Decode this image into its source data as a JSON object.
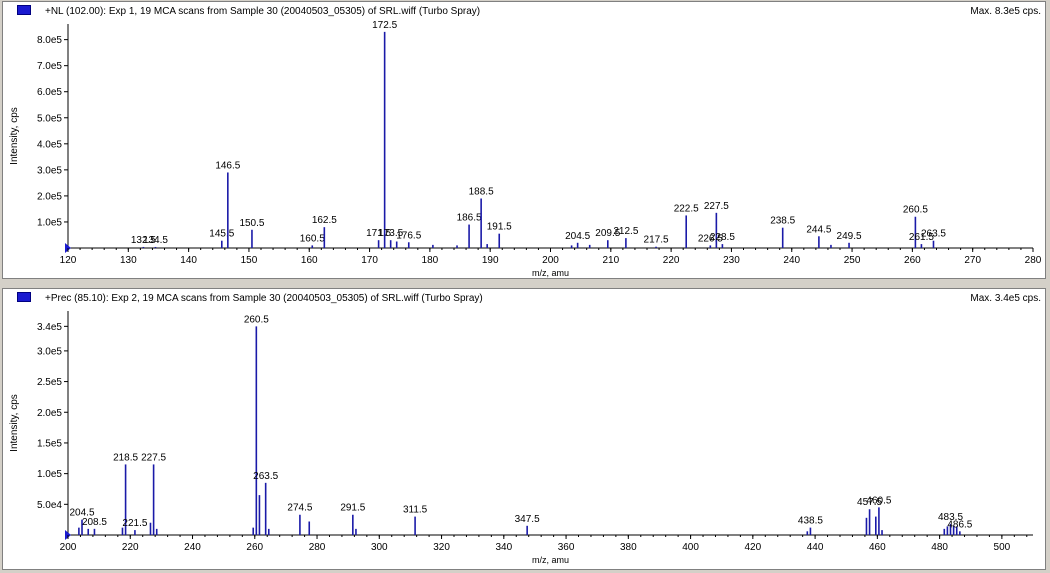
{
  "chart_data": [
    {
      "type": "bar",
      "title": "+NL (102.00): Exp 1, 19 MCA scans from Sample 30 (20040503_05305) of SRL.wiff (Turbo Spray)",
      "max_label": "Max. 8.3e5 cps.",
      "xlabel": "m/z, amu",
      "ylabel": "Intensity, cps",
      "xlim": [
        120,
        280
      ],
      "ylim": [
        0,
        860000.0
      ],
      "x_ticks": [
        120,
        130,
        140,
        150,
        160,
        170,
        180,
        190,
        200,
        210,
        220,
        230,
        240,
        250,
        260,
        270,
        280
      ],
      "y_ticks": [
        {
          "value": 100000,
          "label": "1.0e5"
        },
        {
          "value": 200000,
          "label": "2.0e5"
        },
        {
          "value": 300000,
          "label": "3.0e5"
        },
        {
          "value": 400000,
          "label": "4.0e5"
        },
        {
          "value": 500000,
          "label": "5.0e5"
        },
        {
          "value": 600000,
          "label": "6.0e5"
        },
        {
          "value": 700000,
          "label": "7.0e5"
        },
        {
          "value": 800000,
          "label": "8.0e5"
        }
      ],
      "peaks": [
        {
          "x": 132.5,
          "y": 4000,
          "label": "132.5"
        },
        {
          "x": 134.5,
          "y": 4000,
          "label": "134.5"
        },
        {
          "x": 145.5,
          "y": 28000,
          "label": "145.5"
        },
        {
          "x": 146.5,
          "y": 290000,
          "label": "146.5"
        },
        {
          "x": 150.5,
          "y": 70000,
          "label": "150.5"
        },
        {
          "x": 160.5,
          "y": 10000,
          "label": "160.5"
        },
        {
          "x": 162.5,
          "y": 80000,
          "label": "162.5"
        },
        {
          "x": 171.5,
          "y": 30000,
          "label": "171.5"
        },
        {
          "x": 172.5,
          "y": 830000,
          "label": "172.5"
        },
        {
          "x": 173.5,
          "y": 30000,
          "label": "173.5"
        },
        {
          "x": 174.5,
          "y": 25000,
          "label": ""
        },
        {
          "x": 176.5,
          "y": 22000,
          "label": "176.5"
        },
        {
          "x": 180.5,
          "y": 12000,
          "label": ""
        },
        {
          "x": 184.5,
          "y": 10000,
          "label": ""
        },
        {
          "x": 186.5,
          "y": 90000,
          "label": "186.5"
        },
        {
          "x": 188.5,
          "y": 190000,
          "label": "188.5"
        },
        {
          "x": 189.5,
          "y": 15000,
          "label": ""
        },
        {
          "x": 191.5,
          "y": 55000,
          "label": "191.5"
        },
        {
          "x": 203.5,
          "y": 10000,
          "label": ""
        },
        {
          "x": 204.5,
          "y": 20000,
          "label": "204.5"
        },
        {
          "x": 206.5,
          "y": 12000,
          "label": ""
        },
        {
          "x": 209.5,
          "y": 30000,
          "label": "209.5"
        },
        {
          "x": 212.5,
          "y": 38000,
          "label": "212.5"
        },
        {
          "x": 217.5,
          "y": 5000,
          "label": "217.5"
        },
        {
          "x": 222.5,
          "y": 125000,
          "label": "222.5"
        },
        {
          "x": 226.5,
          "y": 10000,
          "label": "226.5"
        },
        {
          "x": 227.5,
          "y": 135000,
          "label": "227.5"
        },
        {
          "x": 228.5,
          "y": 15000,
          "label": "228.5"
        },
        {
          "x": 238.5,
          "y": 78000,
          "label": "238.5"
        },
        {
          "x": 244.5,
          "y": 45000,
          "label": "244.5"
        },
        {
          "x": 246.5,
          "y": 12000,
          "label": ""
        },
        {
          "x": 249.5,
          "y": 20000,
          "label": "249.5"
        },
        {
          "x": 260.5,
          "y": 120000,
          "label": "260.5"
        },
        {
          "x": 261.5,
          "y": 15000,
          "label": "261.5"
        },
        {
          "x": 263.5,
          "y": 28000,
          "label": "263.5"
        }
      ]
    },
    {
      "type": "bar",
      "title": "+Prec (85.10): Exp 2, 19 MCA scans from Sample 30 (20040503_05305) of SRL.wiff (Turbo Spray)",
      "max_label": "Max. 3.4e5 cps.",
      "xlabel": "m/z, amu",
      "ylabel": "Intensity, cps",
      "xlim": [
        200,
        510
      ],
      "ylim": [
        0,
        365000.0
      ],
      "x_ticks": [
        200,
        220,
        240,
        260,
        280,
        300,
        320,
        340,
        360,
        380,
        400,
        420,
        440,
        460,
        480,
        500
      ],
      "y_ticks": [
        {
          "value": 50000,
          "label": "5.0e4"
        },
        {
          "value": 100000,
          "label": "1.0e5"
        },
        {
          "value": 150000,
          "label": "1.5e5"
        },
        {
          "value": 200000,
          "label": "2.0e5"
        },
        {
          "value": 250000,
          "label": "2.5e5"
        },
        {
          "value": 300000,
          "label": "3.0e5"
        },
        {
          "value": 340000,
          "label": "3.4e5"
        }
      ],
      "peaks": [
        {
          "x": 204.5,
          "y": 25000,
          "label": "204.5"
        },
        {
          "x": 203.5,
          "y": 12000,
          "label": ""
        },
        {
          "x": 206.5,
          "y": 10000,
          "label": ""
        },
        {
          "x": 208.5,
          "y": 10000,
          "label": "208.5"
        },
        {
          "x": 218.5,
          "y": 115000,
          "label": "218.5"
        },
        {
          "x": 217.5,
          "y": 12000,
          "label": ""
        },
        {
          "x": 221.5,
          "y": 8000,
          "label": "221.5"
        },
        {
          "x": 226.5,
          "y": 20000,
          "label": ""
        },
        {
          "x": 227.5,
          "y": 115000,
          "label": "227.5"
        },
        {
          "x": 228.5,
          "y": 10000,
          "label": ""
        },
        {
          "x": 259.5,
          "y": 12000,
          "label": ""
        },
        {
          "x": 260.5,
          "y": 340000,
          "label": "260.5"
        },
        {
          "x": 261.5,
          "y": 65000,
          "label": ""
        },
        {
          "x": 263.5,
          "y": 85000,
          "label": "263.5"
        },
        {
          "x": 264.5,
          "y": 10000,
          "label": ""
        },
        {
          "x": 274.5,
          "y": 33000,
          "label": "274.5"
        },
        {
          "x": 277.5,
          "y": 22000,
          "label": ""
        },
        {
          "x": 291.5,
          "y": 33000,
          "label": "291.5"
        },
        {
          "x": 292.5,
          "y": 10000,
          "label": ""
        },
        {
          "x": 311.5,
          "y": 30000,
          "label": "311.5"
        },
        {
          "x": 347.5,
          "y": 15000,
          "label": "347.5"
        },
        {
          "x": 438.5,
          "y": 12000,
          "label": "438.5"
        },
        {
          "x": 437.5,
          "y": 6000,
          "label": ""
        },
        {
          "x": 456.5,
          "y": 28000,
          "label": ""
        },
        {
          "x": 457.5,
          "y": 42000,
          "label": "457.5"
        },
        {
          "x": 459.5,
          "y": 30000,
          "label": ""
        },
        {
          "x": 460.5,
          "y": 45000,
          "label": "460.5"
        },
        {
          "x": 461.5,
          "y": 8000,
          "label": ""
        },
        {
          "x": 481.5,
          "y": 10000,
          "label": ""
        },
        {
          "x": 482.5,
          "y": 14000,
          "label": ""
        },
        {
          "x": 483.5,
          "y": 18000,
          "label": "483.5"
        },
        {
          "x": 484.5,
          "y": 15000,
          "label": ""
        },
        {
          "x": 485.5,
          "y": 14000,
          "label": ""
        },
        {
          "x": 486.5,
          "y": 6000,
          "label": "486.5"
        }
      ]
    }
  ],
  "colors": {
    "peak": "#1a1aa8",
    "axis": "#000000",
    "marker": "#1a1ad0"
  }
}
